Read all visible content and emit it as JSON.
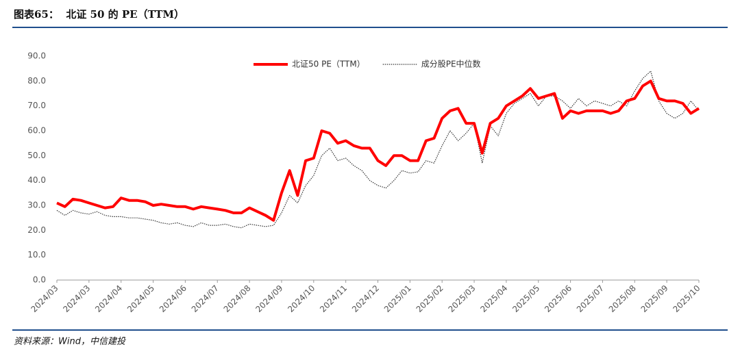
{
  "chart_data": {
    "type": "line",
    "title": "图表65：  北证 50 的 PE（TTM）",
    "source": "资料来源：Wind，中信建投",
    "categories": [
      "2024/03",
      null,
      null,
      null,
      "2024/03",
      null,
      null,
      null,
      "2024/04",
      null,
      null,
      null,
      "2024/05",
      null,
      null,
      null,
      "2024/06",
      null,
      null,
      null,
      "2024/07",
      null,
      null,
      null,
      "2024/08",
      null,
      null,
      null,
      "2024/09",
      null,
      null,
      null,
      "2024/10",
      null,
      null,
      null,
      "2024/11",
      null,
      null,
      null,
      "2024/12",
      null,
      null,
      null,
      "2025/01",
      null,
      null,
      null,
      "2025/02",
      null,
      null,
      null,
      "2025/03",
      null,
      null,
      null,
      "2025/04",
      null,
      null,
      null,
      "2025/05",
      null,
      null,
      null,
      "2025/06",
      null,
      null,
      null,
      "2025/07",
      null,
      null,
      null,
      "2025/08",
      null,
      null,
      null,
      "2025/09",
      null,
      null,
      null,
      "2025/10"
    ],
    "series": [
      {
        "name": "北证50 PE（TTM）",
        "color": "#ff0000",
        "style": "solid",
        "width": 4,
        "values": [
          31,
          29.5,
          32.5,
          32,
          31,
          30,
          29,
          29.5,
          33,
          32,
          32,
          31.5,
          30,
          30.5,
          30,
          29.5,
          29.5,
          28.5,
          29.5,
          29,
          28.5,
          28,
          27,
          27,
          29,
          27.5,
          26,
          24,
          35,
          44,
          34,
          48,
          49,
          60,
          59,
          55,
          56,
          54,
          53,
          53,
          48,
          46,
          50,
          50,
          48,
          48,
          56,
          57,
          65,
          68,
          69,
          63,
          63,
          51,
          63,
          65,
          70,
          72,
          74,
          77,
          73,
          74,
          75,
          65,
          68,
          67,
          68,
          68,
          68,
          67,
          68,
          72,
          73,
          78,
          80,
          73,
          72,
          72,
          71,
          67,
          69
        ]
      },
      {
        "name": "成分股PE中位数",
        "color": "#333333",
        "style": "dotted",
        "width": 1.2,
        "values": [
          28,
          26,
          28,
          27,
          26.5,
          27.5,
          26,
          25.5,
          25.5,
          25,
          25,
          24.5,
          24,
          23,
          22.5,
          23,
          22,
          21.5,
          23,
          22,
          22,
          22.5,
          21.5,
          21,
          22.5,
          22,
          21.5,
          22,
          27,
          34,
          31,
          38,
          42,
          50,
          53,
          48,
          49,
          46,
          44,
          40,
          38,
          37,
          40,
          44,
          43,
          43.5,
          48,
          47,
          54,
          60,
          56,
          59,
          63,
          47,
          62,
          58,
          67,
          71,
          73,
          75,
          70,
          74,
          74,
          72,
          69,
          73,
          70,
          72,
          71,
          70,
          72,
          70,
          76,
          81,
          84,
          72,
          67,
          65,
          67,
          72,
          68
        ]
      }
    ],
    "ylim": [
      0,
      90
    ],
    "yticks": [
      {
        "value": 0,
        "label": "0.0"
      },
      {
        "value": 10,
        "label": "10.0"
      },
      {
        "value": 20,
        "label": "20.0"
      },
      {
        "value": 30,
        "label": "30.0"
      },
      {
        "value": 40,
        "label": "40.0"
      },
      {
        "value": 50,
        "label": "50.0"
      },
      {
        "value": 60,
        "label": "60.0"
      },
      {
        "value": 70,
        "label": "70.0"
      },
      {
        "value": 80,
        "label": "80.0"
      },
      {
        "value": 90,
        "label": "90.0"
      }
    ],
    "legend": "top"
  }
}
